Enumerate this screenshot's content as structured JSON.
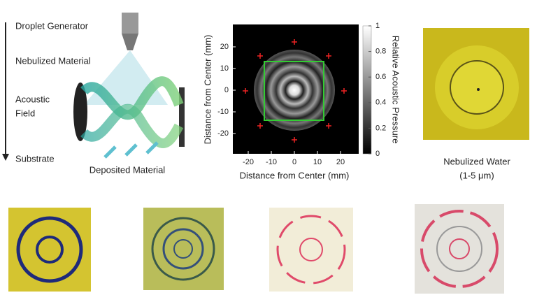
{
  "schematic": {
    "labels": [
      [
        "Droplet Generator"
      ],
      [
        "Nebulized Material"
      ],
      [
        "Acoustic",
        "Field"
      ],
      [
        "Substrate"
      ]
    ],
    "caption": "Deposited Material"
  },
  "heatmap": {
    "xlabel": "Distance from Center (mm)",
    "ylabel": "Distance from Center (mm)",
    "xticks": [
      -20,
      -10,
      0,
      10,
      20
    ],
    "yticks": [
      -20,
      -10,
      0,
      10,
      20
    ],
    "colorbar_label": "Relative Acoustic Pressure",
    "colorbar_ticks": [
      0,
      0.2,
      0.4,
      0.6,
      0.8,
      1
    ]
  },
  "photo": {
    "caption": [
      "Nebulized Water",
      "(1-5 μm)"
    ]
  }
}
